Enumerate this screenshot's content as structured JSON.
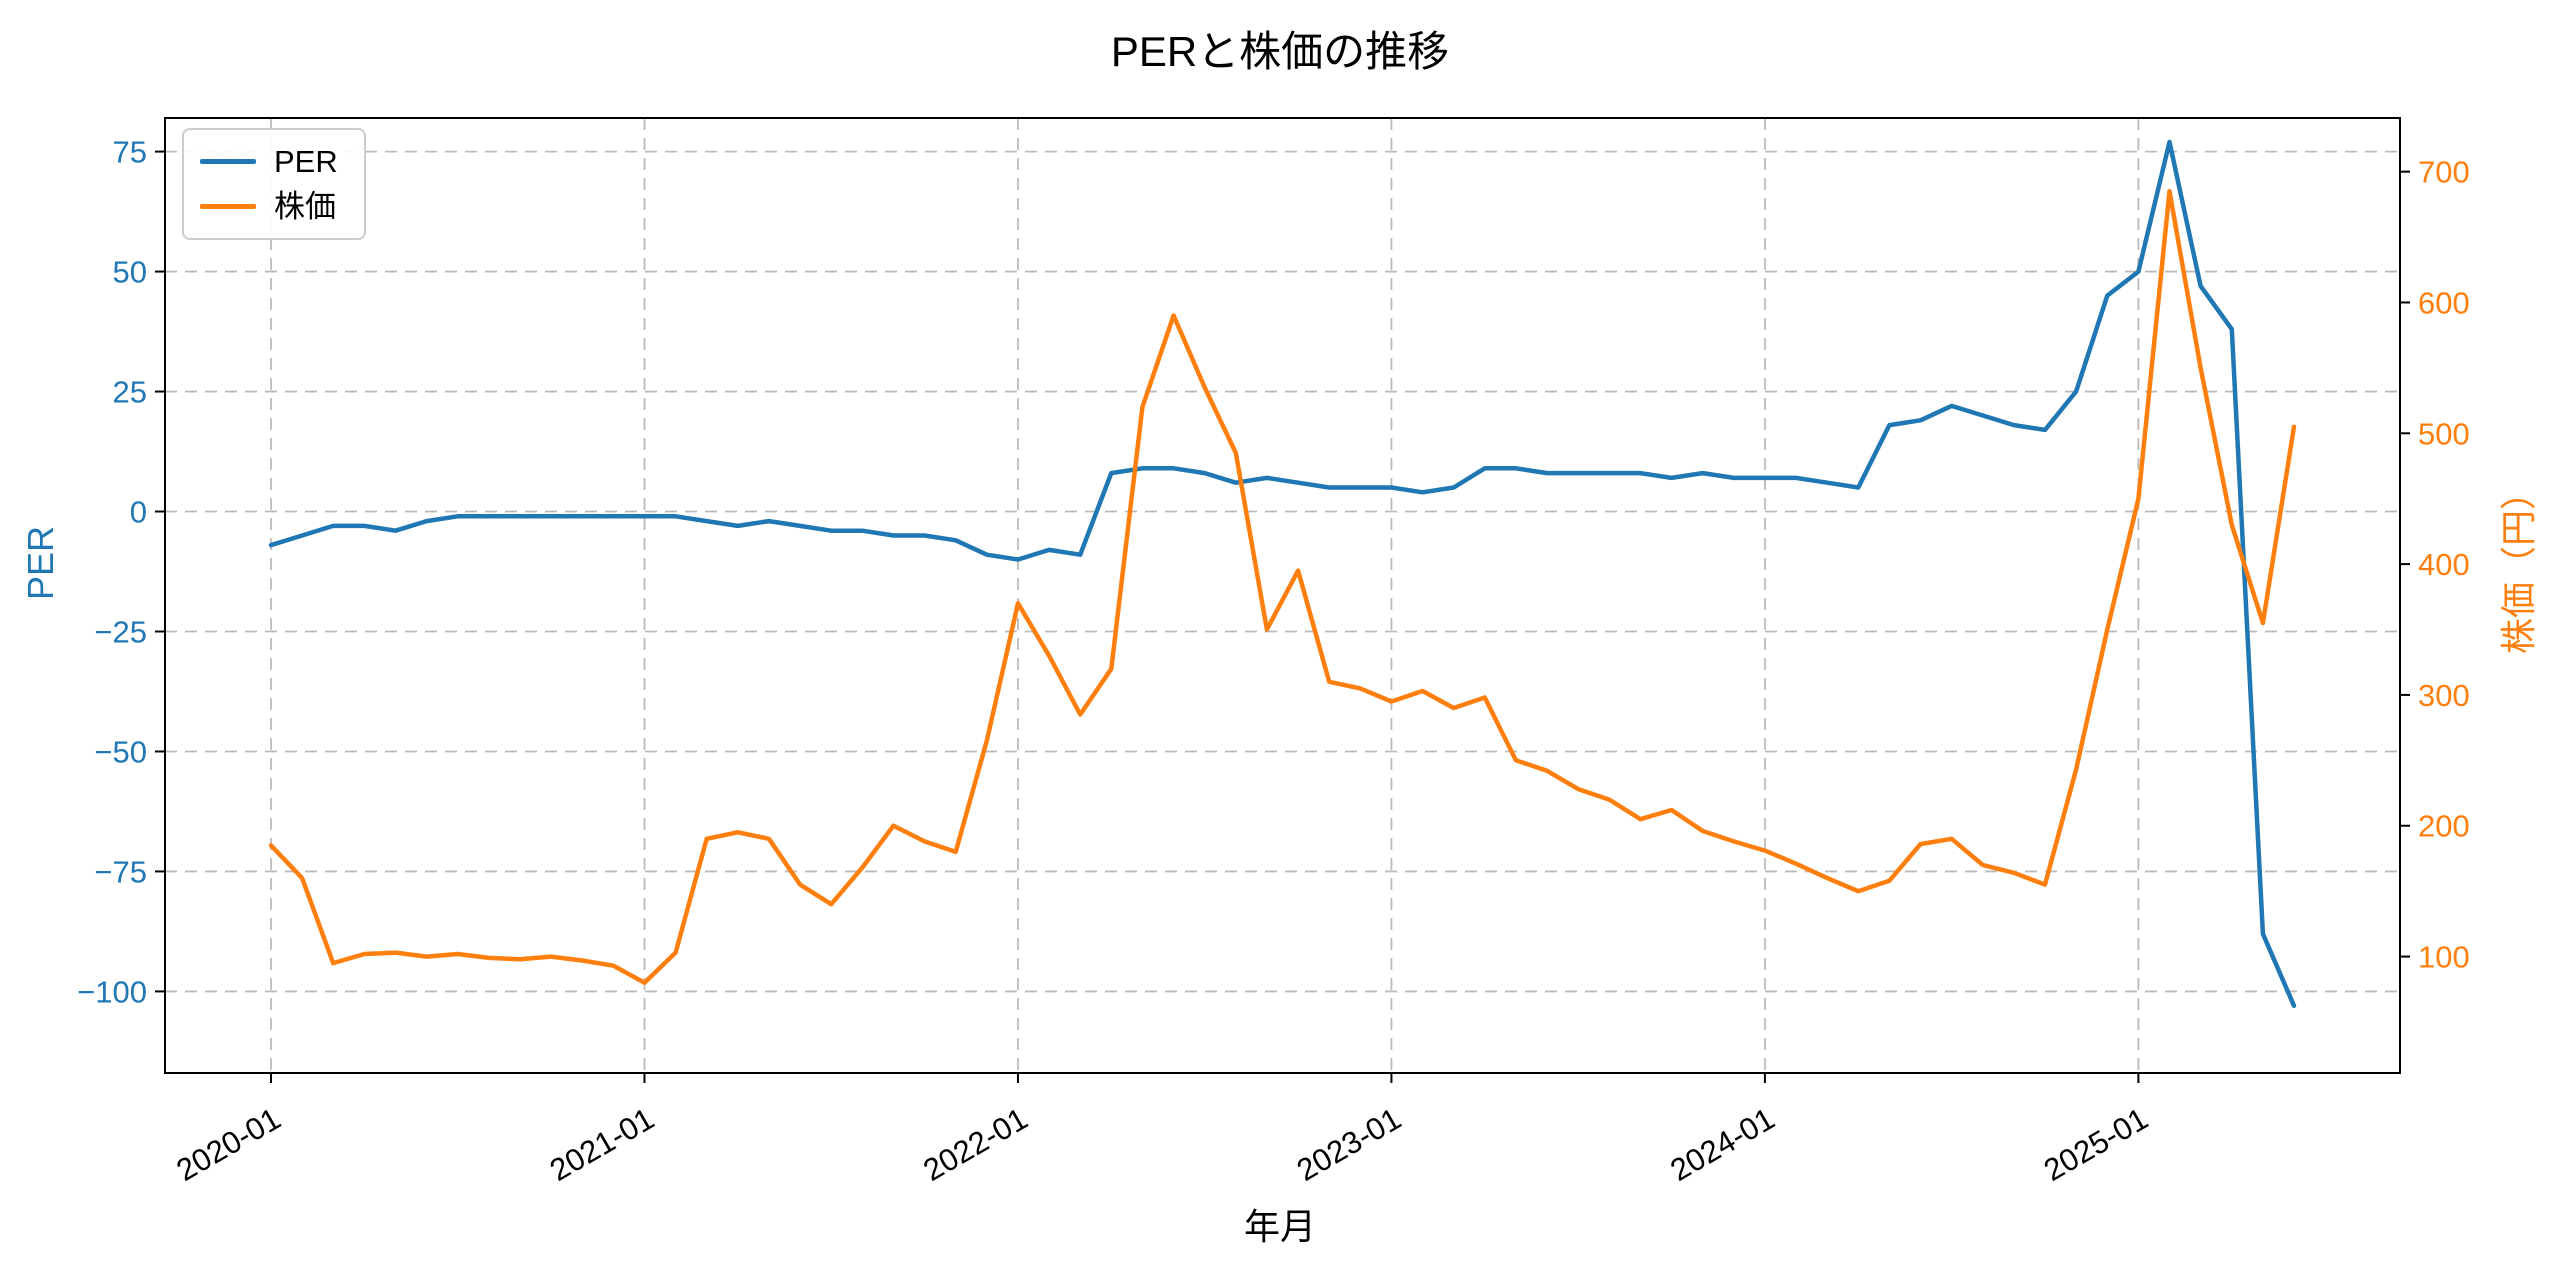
{
  "title": "PERと株価の推移",
  "xlabel": "年月",
  "colors": {
    "per": "#1f77b4",
    "price": "#ff7f0e",
    "grid": "#bbbbbb",
    "spine": "#000000",
    "background": "#ffffff",
    "tick_mark": "#000000",
    "x_tick_label": "#000000"
  },
  "chart_data": {
    "type": "line",
    "title": "PERと株価の推移",
    "xlabel": "年月",
    "grid": true,
    "grid_style": "dashed",
    "legend_position": "upper-left",
    "legend": [
      "PER",
      "株価"
    ],
    "x": [
      "2020-01",
      "2020-02",
      "2020-03",
      "2020-04",
      "2020-05",
      "2020-06",
      "2020-07",
      "2020-08",
      "2020-09",
      "2020-10",
      "2020-11",
      "2020-12",
      "2021-01",
      "2021-02",
      "2021-03",
      "2021-04",
      "2021-05",
      "2021-06",
      "2021-07",
      "2021-08",
      "2021-09",
      "2021-10",
      "2021-11",
      "2021-12",
      "2022-01",
      "2022-02",
      "2022-03",
      "2022-04",
      "2022-05",
      "2022-06",
      "2022-07",
      "2022-08",
      "2022-09",
      "2022-10",
      "2022-11",
      "2022-12",
      "2023-01",
      "2023-02",
      "2023-03",
      "2023-04",
      "2023-05",
      "2023-06",
      "2023-07",
      "2023-08",
      "2023-09",
      "2023-10",
      "2023-11",
      "2023-12",
      "2024-01",
      "2024-02",
      "2024-03",
      "2024-04",
      "2024-05",
      "2024-06",
      "2024-07",
      "2024-08",
      "2024-09",
      "2024-10",
      "2024-11",
      "2024-12",
      "2025-01",
      "2025-02",
      "2025-03",
      "2025-04",
      "2025-05",
      "2025-06"
    ],
    "x_ticks": [
      "2020-01",
      "2021-01",
      "2022-01",
      "2023-01",
      "2024-01",
      "2025-01"
    ],
    "left_axis": {
      "label": "PER",
      "color": "#1f77b4",
      "ticks": [
        75,
        50,
        25,
        0,
        -25,
        -50,
        -75,
        -100
      ],
      "lim": [
        -117,
        82
      ]
    },
    "right_axis": {
      "label": "株価（円）",
      "color": "#ff7f0e",
      "ticks": [
        700,
        600,
        500,
        400,
        300,
        200,
        100
      ],
      "lim": [
        11,
        741
      ]
    },
    "series": [
      {
        "name": "PER",
        "axis": "left",
        "color": "#1f77b4",
        "values": [
          -7,
          -5,
          -3,
          -3,
          -4,
          -2,
          -1,
          -1,
          -1,
          -1,
          -1,
          -1,
          -1,
          -1,
          -2,
          -3,
          -2,
          -3,
          -4,
          -4,
          -5,
          -5,
          -6,
          -9,
          -10,
          -8,
          -9,
          8,
          9,
          9,
          8,
          6,
          7,
          6,
          5,
          5,
          5,
          4,
          5,
          9,
          9,
          8,
          8,
          8,
          8,
          7,
          8,
          7,
          7,
          7,
          6,
          5,
          18,
          19,
          22,
          20,
          18,
          17,
          25,
          45,
          50,
          77,
          47,
          38,
          -88,
          -103
        ]
      },
      {
        "name": "株価",
        "axis": "right",
        "color": "#ff7f0e",
        "values": [
          185,
          160,
          95,
          102,
          103,
          100,
          102,
          99,
          98,
          100,
          97,
          93,
          80,
          103,
          190,
          195,
          190,
          155,
          140,
          168,
          200,
          188,
          180,
          265,
          370,
          330,
          285,
          320,
          520,
          590,
          535,
          485,
          350,
          395,
          310,
          305,
          295,
          303,
          290,
          298,
          250,
          242,
          228,
          220,
          205,
          212,
          196,
          188,
          181,
          171,
          160,
          150,
          158,
          186,
          190,
          170,
          164,
          155,
          243,
          350,
          450,
          685,
          550,
          430,
          355,
          505
        ]
      }
    ]
  }
}
